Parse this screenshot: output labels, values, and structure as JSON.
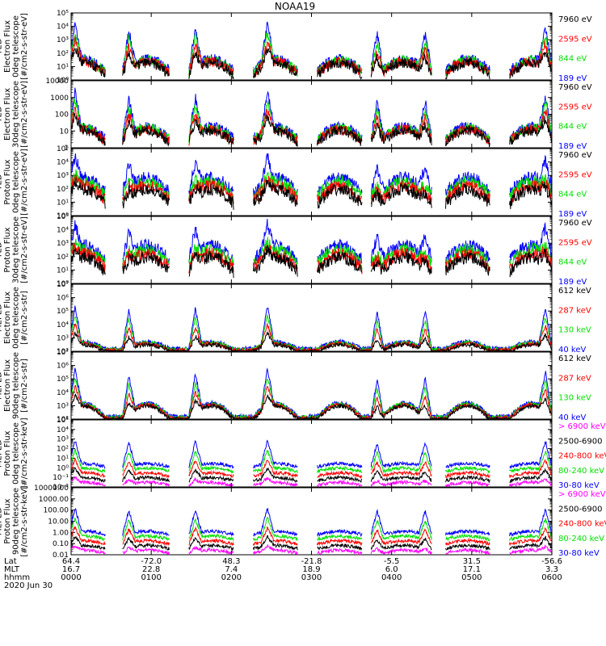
{
  "title": "NOAA19",
  "colors": {
    "black": "#000000",
    "red": "#ff0000",
    "green": "#00e000",
    "blue": "#0000ff",
    "magenta": "#ff00ff"
  },
  "chart_data": {
    "type": "line",
    "time_range_hhmm": [
      "0000",
      "0600"
    ],
    "panels": [
      {
        "id": "p1",
        "ylabel_lines": [
          "TED",
          "Electron Flux",
          "0deg telescope",
          "[#/cm2-s-str-eV]"
        ],
        "yscale": "log",
        "ylim": [
          1,
          100000
        ],
        "yticks": [
          {
            "v": 1,
            "t": "10⁰"
          },
          {
            "v": 10,
            "t": "10¹"
          },
          {
            "v": 100,
            "t": "10²"
          },
          {
            "v": 1000,
            "t": "10³"
          },
          {
            "v": 10000,
            "t": "10⁴"
          },
          {
            "v": 100000,
            "t": "10⁵"
          }
        ],
        "series": [
          {
            "name": "7960 eV",
            "color": "black"
          },
          {
            "name": "2595 eV",
            "color": "red"
          },
          {
            "name": "844 eV",
            "color": "green"
          },
          {
            "name": "189 eV",
            "color": "blue"
          }
        ]
      },
      {
        "id": "p2",
        "ylabel_lines": [
          "TED",
          "Electron Flux",
          "30deg telescope",
          "[#/cm2-s-str-eV]"
        ],
        "yscale": "log",
        "ylim": [
          1,
          10000
        ],
        "yticks": [
          {
            "v": 1,
            "t": "1"
          },
          {
            "v": 10,
            "t": "10"
          },
          {
            "v": 100,
            "t": "100"
          },
          {
            "v": 1000,
            "t": "1000"
          },
          {
            "v": 10000,
            "t": "10000"
          }
        ],
        "series": [
          {
            "name": "7960 eV",
            "color": "black"
          },
          {
            "name": "2595 eV",
            "color": "red"
          },
          {
            "name": "844 eV",
            "color": "green"
          },
          {
            "name": "189 eV",
            "color": "blue"
          }
        ]
      },
      {
        "id": "p3",
        "ylabel_lines": [
          "TED",
          "Proton Flux",
          "0deg telescope",
          "[#/cm2-s-str-eV]"
        ],
        "yscale": "log",
        "ylim": [
          1,
          100000
        ],
        "yticks": [
          {
            "v": 1,
            "t": "10⁰"
          },
          {
            "v": 10,
            "t": "10¹"
          },
          {
            "v": 100,
            "t": "10²"
          },
          {
            "v": 1000,
            "t": "10³"
          },
          {
            "v": 10000,
            "t": "10⁴"
          },
          {
            "v": 100000,
            "t": "10⁵"
          }
        ],
        "series": [
          {
            "name": "7960 eV",
            "color": "black"
          },
          {
            "name": "2595 eV",
            "color": "red"
          },
          {
            "name": "844 eV",
            "color": "green"
          },
          {
            "name": "189 eV",
            "color": "blue"
          }
        ]
      },
      {
        "id": "p4",
        "ylabel_lines": [
          "TED",
          "Proton Flux",
          "30deg telescope",
          "[#/cm2-s-str-eV]"
        ],
        "yscale": "log",
        "ylim": [
          1,
          100000
        ],
        "yticks": [
          {
            "v": 1,
            "t": "10⁰"
          },
          {
            "v": 10,
            "t": "10¹"
          },
          {
            "v": 100,
            "t": "10²"
          },
          {
            "v": 1000,
            "t": "10³"
          },
          {
            "v": 10000,
            "t": "10⁴"
          },
          {
            "v": 100000,
            "t": "10⁵"
          }
        ],
        "series": [
          {
            "name": "7960 eV",
            "color": "black"
          },
          {
            "name": "2595 eV",
            "color": "red"
          },
          {
            "name": "844 eV",
            "color": "green"
          },
          {
            "name": "189 eV",
            "color": "blue"
          }
        ]
      },
      {
        "id": "p5",
        "ylabel_lines": [
          "MEPED",
          "Electron Flux",
          "0deg telescope",
          "[#/cm2-s-str]"
        ],
        "yscale": "log",
        "ylim": [
          100,
          10000000
        ],
        "yticks": [
          {
            "v": 100,
            "t": "10²"
          },
          {
            "v": 1000,
            "t": "10³"
          },
          {
            "v": 10000,
            "t": "10⁴"
          },
          {
            "v": 100000,
            "t": "10⁵"
          },
          {
            "v": 1000000,
            "t": "10⁶"
          },
          {
            "v": 10000000,
            "t": "10⁷"
          }
        ],
        "series": [
          {
            "name": "612 keV",
            "color": "black"
          },
          {
            "name": "287 keV",
            "color": "red"
          },
          {
            "name": "130 keV",
            "color": "green"
          },
          {
            "name": "40 keV",
            "color": "blue"
          }
        ]
      },
      {
        "id": "p6",
        "ylabel_lines": [
          "MEPED",
          "Electron Flux",
          "90deg telescope",
          "[#/cm2-s-str]"
        ],
        "yscale": "log",
        "ylim": [
          100,
          10000000
        ],
        "yticks": [
          {
            "v": 100,
            "t": "10²"
          },
          {
            "v": 1000,
            "t": "10³"
          },
          {
            "v": 10000,
            "t": "10⁴"
          },
          {
            "v": 100000,
            "t": "10⁵"
          },
          {
            "v": 1000000,
            "t": "10⁶"
          },
          {
            "v": 10000000,
            "t": "10⁷"
          }
        ],
        "series": [
          {
            "name": "612 keV",
            "color": "black"
          },
          {
            "name": "287 keV",
            "color": "red"
          },
          {
            "name": "130 keV",
            "color": "green"
          },
          {
            "name": "40 keV",
            "color": "blue"
          }
        ]
      },
      {
        "id": "p7",
        "ylabel_lines": [
          "MEPED",
          "Proton Flux",
          "0deg telescope",
          "[#/cm2-s-str-keV]"
        ],
        "yscale": "log",
        "ylim": [
          0.01,
          100000
        ],
        "yticks": [
          {
            "v": 0.01,
            "t": "10⁻²"
          },
          {
            "v": 0.1,
            "t": "10⁻¹"
          },
          {
            "v": 1,
            "t": "10⁰"
          },
          {
            "v": 10,
            "t": "10¹"
          },
          {
            "v": 100,
            "t": "10²"
          },
          {
            "v": 1000,
            "t": "10³"
          },
          {
            "v": 10000,
            "t": "10⁴"
          },
          {
            "v": 100000,
            "t": "10⁵"
          }
        ],
        "series": [
          {
            "name": "> 6900 keV",
            "color": "magenta"
          },
          {
            "name": "2500-6900",
            "color": "black"
          },
          {
            "name": "240-800 keV",
            "color": "red"
          },
          {
            "name": "80-240 keV",
            "color": "green"
          },
          {
            "name": "30-80 keV",
            "color": "blue"
          }
        ]
      },
      {
        "id": "p8",
        "ylabel_lines": [
          "MEPED",
          "Proton Flux",
          "90deg telescope",
          "[#/cm2-s-str-keV]"
        ],
        "yscale": "log",
        "ylim": [
          0.01,
          10000
        ],
        "yticks": [
          {
            "v": 0.01,
            "t": "0.01"
          },
          {
            "v": 0.1,
            "t": "0.10"
          },
          {
            "v": 1,
            "t": "1.00"
          },
          {
            "v": 10,
            "t": "10.00"
          },
          {
            "v": 100,
            "t": "100.00"
          },
          {
            "v": 1000,
            "t": "1000.00"
          },
          {
            "v": 10000,
            "t": "10000.00"
          }
        ],
        "series": [
          {
            "name": "> 6900 keV",
            "color": "magenta"
          },
          {
            "name": "2500-6900",
            "color": "black"
          },
          {
            "name": "240-800 keV",
            "color": "red"
          },
          {
            "name": "80-240 keV",
            "color": "green"
          },
          {
            "name": "30-80 keV",
            "color": "blue"
          }
        ]
      }
    ],
    "x_axis": {
      "row_labels": [
        "Lat",
        "MLT",
        "hhmm",
        "2020 Jun 30"
      ],
      "ticks": [
        {
          "hhmm": "0000",
          "lat": "64.4",
          "mlt": "16.7"
        },
        {
          "hhmm": "0100",
          "lat": "-72.0",
          "mlt": "22.8"
        },
        {
          "hhmm": "0200",
          "lat": "48.3",
          "mlt": "7.4"
        },
        {
          "hhmm": "0300",
          "lat": "-21.8",
          "mlt": "18.9"
        },
        {
          "hhmm": "0400",
          "lat": "-5.5",
          "mlt": "6.0"
        },
        {
          "hhmm": "0500",
          "lat": "31.5",
          "mlt": "17.1"
        },
        {
          "hhmm": "0600",
          "lat": "-56.6",
          "mlt": "3.3"
        }
      ]
    },
    "pass_times_hr": [
      0.15,
      0.95,
      1.75,
      2.55,
      3.35,
      4.15,
      4.95,
      5.75
    ],
    "peak_times_hr": [
      0.05,
      0.72,
      1.55,
      2.45,
      3.82,
      4.42,
      5.92
    ],
    "grid": false
  }
}
